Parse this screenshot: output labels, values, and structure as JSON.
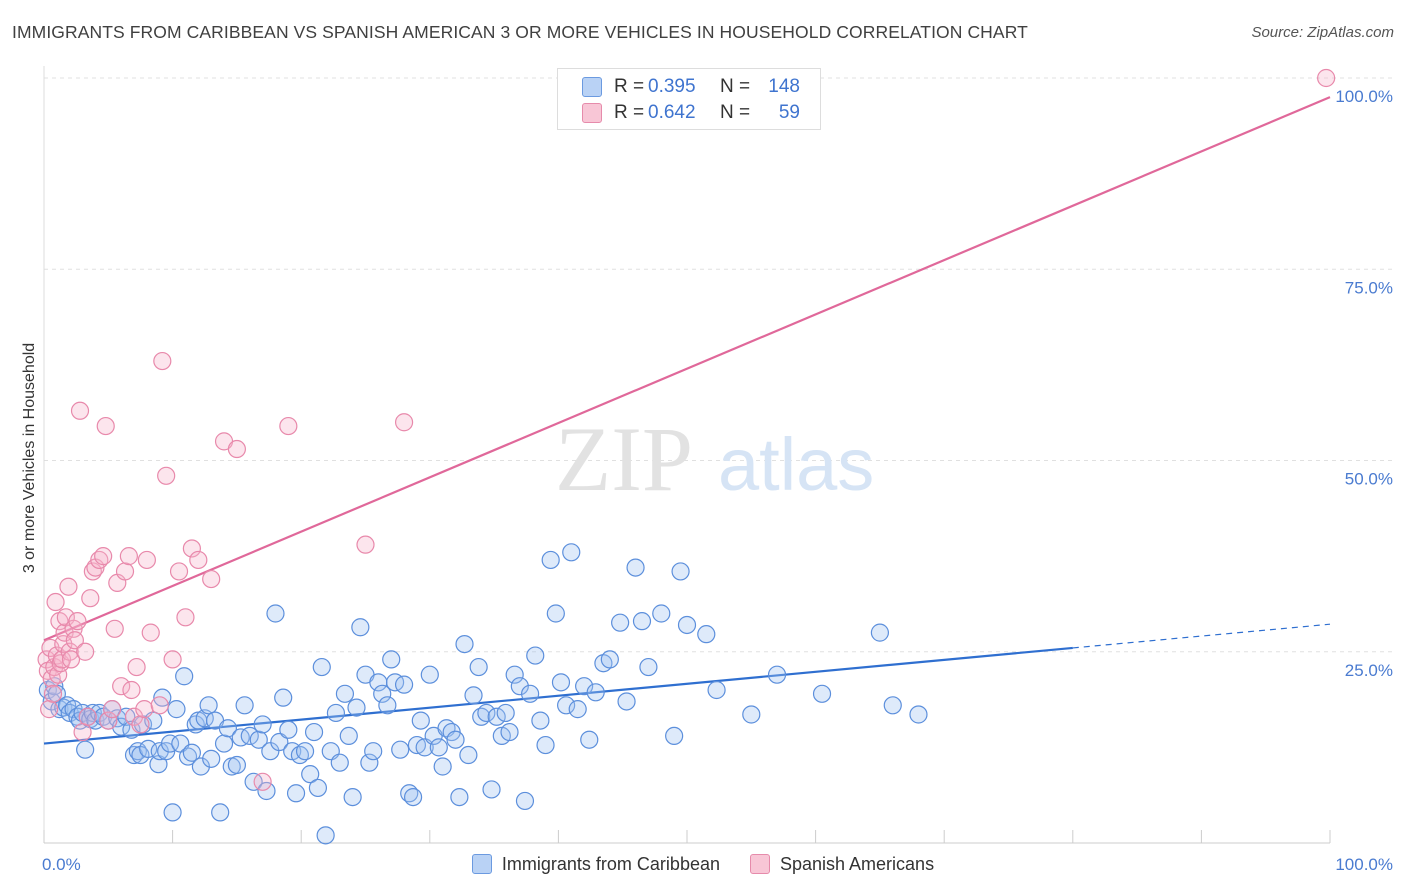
{
  "title": "IMMIGRANTS FROM CARIBBEAN VS SPANISH AMERICAN 3 OR MORE VEHICLES IN HOUSEHOLD CORRELATION CHART",
  "source": "Source: ZipAtlas.com",
  "watermark": {
    "zip": "ZIP",
    "atlas": "atlas"
  },
  "colors": {
    "blue": "#4f86d9",
    "pink": "#e8729b",
    "blue_line": "#2f6fd0",
    "pink_line": "#e0689a",
    "tick": "#4a7bd0"
  },
  "stats": {
    "blue": {
      "r_label": "R =",
      "r_value": "0.395",
      "n_label": "N =",
      "n_value": "148"
    },
    "pink": {
      "r_label": "R =",
      "r_value": "0.642",
      "n_label": "N =",
      "n_value": "59"
    }
  },
  "legend": {
    "blue": "Immigrants from Caribbean",
    "pink": "Spanish Americans"
  },
  "chart_data": {
    "type": "scatter",
    "title": "IMMIGRANTS FROM CARIBBEAN VS SPANISH AMERICAN 3 OR MORE VEHICLES IN HOUSEHOLD CORRELATION CHART",
    "xlabel": "",
    "ylabel": "3 or more Vehicles in Household",
    "xlim": [
      0,
      100
    ],
    "ylim": [
      0,
      100
    ],
    "x_tick_labels": [
      "0.0%",
      "100.0%"
    ],
    "y_ticks": [
      {
        "value": 25,
        "label": "25.0%"
      },
      {
        "value": 50,
        "label": "50.0%"
      },
      {
        "value": 75,
        "label": "75.0%"
      },
      {
        "value": 100,
        "label": "100.0%"
      }
    ],
    "grid": true,
    "legend_position": "bottom",
    "series": [
      {
        "name": "Immigrants from Caribbean",
        "color": "#4f86d9",
        "trend": {
          "x0": 0,
          "y0": 13.0,
          "x1": 80,
          "y1": 25.5,
          "dashed_to_x": 100,
          "dashed_to_y": 28.6
        },
        "points": [
          [
            0.3,
            20.0
          ],
          [
            0.6,
            18.5
          ],
          [
            0.8,
            20.5
          ],
          [
            1.0,
            19.5
          ],
          [
            1.2,
            17.5
          ],
          [
            1.5,
            17.7
          ],
          [
            1.8,
            18.0
          ],
          [
            2.0,
            17.0
          ],
          [
            2.3,
            17.5
          ],
          [
            2.6,
            16.5
          ],
          [
            2.8,
            16.0
          ],
          [
            3.0,
            17.0
          ],
          [
            3.2,
            12.2
          ],
          [
            3.4,
            16.5
          ],
          [
            3.6,
            16.2
          ],
          [
            3.8,
            17.0
          ],
          [
            4.0,
            16.0
          ],
          [
            4.3,
            17.0
          ],
          [
            4.6,
            16.5
          ],
          [
            5.0,
            16.0
          ],
          [
            5.3,
            17.5
          ],
          [
            5.7,
            16.3
          ],
          [
            6.0,
            15.2
          ],
          [
            6.4,
            16.5
          ],
          [
            6.8,
            14.8
          ],
          [
            7.0,
            11.5
          ],
          [
            7.3,
            12.0
          ],
          [
            7.5,
            11.5
          ],
          [
            7.7,
            15.5
          ],
          [
            8.1,
            12.3
          ],
          [
            8.5,
            16.0
          ],
          [
            8.9,
            10.3
          ],
          [
            9.0,
            12.0
          ],
          [
            9.2,
            19.0
          ],
          [
            9.5,
            12.0
          ],
          [
            9.8,
            13.0
          ],
          [
            10.0,
            4.0
          ],
          [
            10.3,
            17.5
          ],
          [
            10.6,
            13.0
          ],
          [
            10.9,
            21.8
          ],
          [
            11.2,
            11.3
          ],
          [
            11.5,
            11.8
          ],
          [
            11.8,
            15.5
          ],
          [
            12.0,
            16.0
          ],
          [
            12.2,
            10.0
          ],
          [
            12.5,
            16.3
          ],
          [
            12.8,
            18.0
          ],
          [
            13.0,
            11.0
          ],
          [
            13.3,
            16.0
          ],
          [
            13.7,
            4.0
          ],
          [
            14.0,
            13.0
          ],
          [
            14.3,
            15.0
          ],
          [
            14.6,
            10.0
          ],
          [
            15.0,
            10.2
          ],
          [
            15.3,
            13.8
          ],
          [
            15.6,
            18.0
          ],
          [
            16.0,
            14.0
          ],
          [
            16.3,
            8.0
          ],
          [
            16.7,
            13.5
          ],
          [
            17.0,
            15.5
          ],
          [
            17.3,
            6.8
          ],
          [
            17.6,
            12.0
          ],
          [
            18.0,
            30.0
          ],
          [
            18.3,
            13.2
          ],
          [
            18.6,
            19.0
          ],
          [
            19.0,
            14.8
          ],
          [
            19.3,
            12.0
          ],
          [
            19.6,
            6.5
          ],
          [
            19.9,
            11.5
          ],
          [
            20.3,
            12.0
          ],
          [
            20.7,
            9.0
          ],
          [
            21.0,
            14.5
          ],
          [
            21.3,
            7.2
          ],
          [
            21.6,
            23.0
          ],
          [
            21.9,
            1.0
          ],
          [
            22.3,
            12.0
          ],
          [
            22.7,
            17.0
          ],
          [
            23.0,
            10.5
          ],
          [
            23.4,
            19.5
          ],
          [
            23.7,
            14.0
          ],
          [
            24.0,
            6.0
          ],
          [
            24.3,
            17.7
          ],
          [
            24.6,
            28.2
          ],
          [
            25.0,
            22.0
          ],
          [
            25.3,
            10.5
          ],
          [
            25.6,
            12.0
          ],
          [
            26.0,
            21.0
          ],
          [
            26.3,
            19.5
          ],
          [
            26.7,
            18.0
          ],
          [
            27.0,
            24.0
          ],
          [
            27.3,
            21.0
          ],
          [
            27.7,
            12.2
          ],
          [
            28.0,
            20.7
          ],
          [
            28.4,
            6.5
          ],
          [
            28.7,
            6.0
          ],
          [
            29.0,
            12.8
          ],
          [
            29.3,
            16.0
          ],
          [
            29.6,
            12.5
          ],
          [
            30.0,
            22.0
          ],
          [
            30.3,
            14.0
          ],
          [
            30.7,
            12.5
          ],
          [
            31.0,
            10.0
          ],
          [
            31.3,
            15.0
          ],
          [
            31.7,
            14.5
          ],
          [
            32.0,
            13.5
          ],
          [
            32.3,
            6.0
          ],
          [
            32.7,
            26.0
          ],
          [
            33.0,
            11.5
          ],
          [
            33.4,
            19.3
          ],
          [
            33.8,
            23.0
          ],
          [
            34.0,
            16.5
          ],
          [
            34.4,
            17.0
          ],
          [
            34.8,
            7.0
          ],
          [
            35.2,
            16.5
          ],
          [
            35.6,
            14.0
          ],
          [
            35.9,
            17.0
          ],
          [
            36.2,
            14.5
          ],
          [
            36.6,
            22.0
          ],
          [
            37.0,
            20.5
          ],
          [
            37.4,
            5.5
          ],
          [
            37.8,
            19.5
          ],
          [
            38.2,
            24.5
          ],
          [
            38.6,
            16.0
          ],
          [
            39.0,
            12.8
          ],
          [
            39.4,
            37.0
          ],
          [
            39.8,
            30.0
          ],
          [
            40.2,
            21.0
          ],
          [
            40.6,
            18.0
          ],
          [
            41.0,
            38.0
          ],
          [
            41.5,
            17.5
          ],
          [
            42.0,
            20.5
          ],
          [
            42.4,
            13.5
          ],
          [
            42.9,
            19.7
          ],
          [
            43.5,
            23.5
          ],
          [
            44.0,
            24.0
          ],
          [
            44.8,
            28.8
          ],
          [
            45.3,
            18.5
          ],
          [
            46.0,
            36.0
          ],
          [
            46.5,
            29.0
          ],
          [
            47.0,
            23.0
          ],
          [
            48.0,
            30.0
          ],
          [
            49.0,
            14.0
          ],
          [
            49.5,
            35.5
          ],
          [
            50.0,
            28.5
          ],
          [
            51.5,
            27.3
          ],
          [
            52.3,
            20.0
          ],
          [
            55.0,
            16.8
          ],
          [
            57.0,
            22.0
          ],
          [
            60.5,
            19.5
          ],
          [
            65.0,
            27.5
          ],
          [
            66.0,
            18.0
          ],
          [
            68.0,
            16.8
          ]
        ]
      },
      {
        "name": "Spanish Americans",
        "color": "#e8729b",
        "trend": {
          "x0": 0,
          "y0": 26.5,
          "x1": 100,
          "y1": 97.5
        },
        "points": [
          [
            0.2,
            24.0
          ],
          [
            0.3,
            22.5
          ],
          [
            0.4,
            17.5
          ],
          [
            0.5,
            25.5
          ],
          [
            0.6,
            21.5
          ],
          [
            0.7,
            19.5
          ],
          [
            0.8,
            23.0
          ],
          [
            0.9,
            31.5
          ],
          [
            1.0,
            24.5
          ],
          [
            1.1,
            22.0
          ],
          [
            1.2,
            29.0
          ],
          [
            1.3,
            23.5
          ],
          [
            1.4,
            24.0
          ],
          [
            1.5,
            26.0
          ],
          [
            1.6,
            27.5
          ],
          [
            1.7,
            29.5
          ],
          [
            1.9,
            33.5
          ],
          [
            2.0,
            25.0
          ],
          [
            2.1,
            24.0
          ],
          [
            2.3,
            28.0
          ],
          [
            2.4,
            26.5
          ],
          [
            2.6,
            29.0
          ],
          [
            2.8,
            56.5
          ],
          [
            3.0,
            14.5
          ],
          [
            3.2,
            25.0
          ],
          [
            3.4,
            16.5
          ],
          [
            3.6,
            32.0
          ],
          [
            3.8,
            35.5
          ],
          [
            4.0,
            36.0
          ],
          [
            4.3,
            37.0
          ],
          [
            4.6,
            37.5
          ],
          [
            4.8,
            54.5
          ],
          [
            5.0,
            16.0
          ],
          [
            5.3,
            17.5
          ],
          [
            5.5,
            28.0
          ],
          [
            5.7,
            34.0
          ],
          [
            6.0,
            20.5
          ],
          [
            6.3,
            35.5
          ],
          [
            6.6,
            37.5
          ],
          [
            6.8,
            20.0
          ],
          [
            7.0,
            16.5
          ],
          [
            7.2,
            23.0
          ],
          [
            7.5,
            15.5
          ],
          [
            7.8,
            17.5
          ],
          [
            8.0,
            37.0
          ],
          [
            8.3,
            27.5
          ],
          [
            9.0,
            18.0
          ],
          [
            9.2,
            63.0
          ],
          [
            9.5,
            48.0
          ],
          [
            10.0,
            24.0
          ],
          [
            10.5,
            35.5
          ],
          [
            11.0,
            29.5
          ],
          [
            11.5,
            38.5
          ],
          [
            12.0,
            37.0
          ],
          [
            13.0,
            34.5
          ],
          [
            14.0,
            52.5
          ],
          [
            15.0,
            51.5
          ],
          [
            17.0,
            8.0
          ],
          [
            19.0,
            54.5
          ],
          [
            25.0,
            39.0
          ],
          [
            28.0,
            55.0
          ],
          [
            99.7,
            100.0
          ]
        ]
      }
    ]
  }
}
